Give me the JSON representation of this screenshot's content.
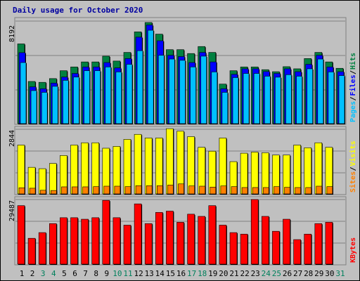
{
  "chart_data": {
    "type": "bar",
    "title": "Daily usage for October 2020",
    "x": [
      "1",
      "2",
      "3",
      "4",
      "5",
      "6",
      "7",
      "8",
      "9",
      "10",
      "11",
      "12",
      "13",
      "14",
      "15",
      "16",
      "17",
      "18",
      "19",
      "20",
      "21",
      "22",
      "23",
      "24",
      "25",
      "26",
      "27",
      "28",
      "29",
      "30",
      "31"
    ],
    "weekend_days": [
      3,
      4,
      10,
      11,
      17,
      18,
      24,
      25,
      31
    ],
    "colors": {
      "hits": "#008040",
      "files": "#0000ff",
      "pages": "#00c0ff",
      "visits": "#ffff00",
      "sites": "#ff8000",
      "kbytes": "#ff0000",
      "weekday_label": "#000000",
      "weekend_label": "#00805c"
    },
    "panels": [
      {
        "name": "usage",
        "ymax_label": "8192",
        "ymax": 8192,
        "legend": [
          {
            "text": "Hits",
            "color": "#008040"
          },
          {
            "text": "Files",
            "color": "#0000ff"
          },
          {
            "text": "Pages",
            "color": "#00c0ff"
          }
        ],
        "series": [
          {
            "name": "Hits",
            "color": "#008040",
            "values": [
              6370,
              3370,
              3300,
              3600,
              4230,
              4530,
              4930,
              4930,
              5390,
              5000,
              5690,
              7330,
              8080,
              7150,
              5910,
              5910,
              5600,
              6160,
              5690,
              3160,
              4230,
              4530,
              4530,
              4310,
              4150,
              4550,
              4380,
              5200,
              5690,
              4930,
              4420
            ]
          },
          {
            "name": "Files",
            "color": "#0000ff",
            "values": [
              5670,
              2940,
              2790,
              3240,
              3720,
              4010,
              4530,
              4530,
              4880,
              4450,
              5200,
              6910,
              7880,
              6620,
              5460,
              5360,
              4880,
              5690,
              4930,
              2790,
              3940,
              4380,
              4380,
              4160,
              4010,
              4380,
              4150,
              4740,
              5460,
              4530,
              4150
            ]
          },
          {
            "name": "Pages",
            "color": "#00c0ff",
            "values": [
              4880,
              2640,
              2500,
              2980,
              3460,
              3720,
              4230,
              4230,
              4530,
              4130,
              4740,
              5830,
              7460,
              5460,
              5160,
              5060,
              4530,
              5390,
              4130,
              2500,
              3680,
              4010,
              4010,
              3790,
              3710,
              3910,
              3790,
              4380,
              5160,
              4130,
              3840
            ]
          }
        ]
      },
      {
        "name": "visits",
        "ymax_label": "2844",
        "ymax": 2844,
        "legend": [
          {
            "text": "Visits",
            "color": "#ffff00"
          },
          {
            "text": "Sites",
            "color": "#ff8000"
          }
        ],
        "series": [
          {
            "name": "Visits",
            "color": "#ffff00",
            "values": [
              2150,
              1170,
              1110,
              1340,
              1690,
              2150,
              2250,
              2250,
              2010,
              2090,
              2400,
              2620,
              2460,
              2460,
              2870,
              2760,
              2520,
              2050,
              1880,
              2460,
              1420,
              1790,
              1840,
              1810,
              1710,
              1710,
              2150,
              2030,
              2250,
              2050,
              0
            ]
          },
          {
            "name": "Sites",
            "color": "#ff8000",
            "values": [
              270,
              250,
              160,
              150,
              310,
              310,
              310,
              320,
              340,
              340,
              320,
              360,
              360,
              360,
              390,
              440,
              350,
              340,
              300,
              350,
              320,
              280,
              280,
              280,
              320,
              290,
              280,
              280,
              340,
              320,
              0
            ]
          }
        ]
      },
      {
        "name": "kbytes",
        "ymax_label": "29487",
        "ymax": 29487,
        "legend": [
          {
            "text": "KBytes",
            "color": "#ff0000"
          }
        ],
        "series": [
          {
            "name": "KBytes",
            "color": "#ff0000",
            "values": [
              26700,
              11800,
              14400,
              18500,
              21200,
              21200,
              20500,
              21200,
              29100,
              21200,
              17800,
              27500,
              18500,
              23600,
              24200,
              19100,
              22800,
              21800,
              26700,
              17800,
              14400,
              13700,
              29500,
              21800,
              15000,
              20500,
              11200,
              13700,
              18500,
              19100,
              0
            ]
          }
        ]
      }
    ]
  }
}
